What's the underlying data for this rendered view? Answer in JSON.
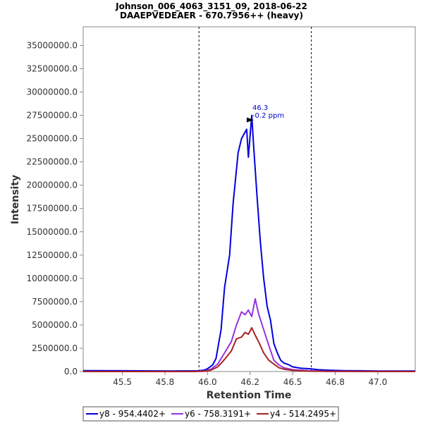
{
  "chart_data": {
    "type": "line",
    "title": "Johnson_006_4063_3151_09, 2018-06-22",
    "subtitle": "DAAEPVEDEAER - 670.7956++ (heavy)",
    "xlabel": "Retention Time",
    "ylabel": "Intensity",
    "xlim": [
      45.27,
      47.22
    ],
    "ylim": [
      0,
      37000000
    ],
    "x_ticks": [
      "45.5",
      "45.8",
      "46.0",
      "46.2",
      "46.5",
      "46.8",
      "47.0"
    ],
    "x_tick_values": [
      45.5,
      45.75,
      46.0,
      46.25,
      46.5,
      46.75,
      47.0
    ],
    "y_ticks": [
      "0.0",
      "2500000.0",
      "5000000.0",
      "7500000.0",
      "10000000.0",
      "12500000.0",
      "15000000.0",
      "17500000.0",
      "20000000.0",
      "22500000.0",
      "25000000.0",
      "27500000.0",
      "30000000.0",
      "32500000.0",
      "35000000.0"
    ],
    "y_tick_values": [
      0,
      2500000,
      5000000,
      7500000,
      10000000,
      12500000,
      15000000,
      17500000,
      20000000,
      22500000,
      25000000,
      27500000,
      30000000,
      32500000,
      35000000
    ],
    "integration_bounds": [
      45.95,
      46.61
    ],
    "annotation": {
      "line1": "46.3",
      "line2": "-0.2 ppm",
      "x": 46.28,
      "y": 27000000,
      "color": "#0000cc"
    },
    "grid": false,
    "legend_position": "bottom",
    "series": [
      {
        "name": "y8 - 954.4402+",
        "color": "#0000dd",
        "x": [
          45.27,
          45.5,
          45.8,
          45.9,
          45.95,
          45.98,
          46.0,
          46.03,
          46.05,
          46.08,
          46.1,
          46.13,
          46.15,
          46.18,
          46.2,
          46.23,
          46.24,
          46.26,
          46.27,
          46.29,
          46.31,
          46.33,
          46.35,
          46.37,
          46.39,
          46.41,
          46.43,
          46.45,
          46.48,
          46.5,
          46.55,
          46.6,
          46.65,
          46.7,
          46.8,
          46.9,
          47.0,
          47.22
        ],
        "y": [
          100000,
          80000,
          60000,
          70000,
          80000,
          150000,
          300000,
          700000,
          1400000,
          4500000,
          9000000,
          12500000,
          18000000,
          23500000,
          25000000,
          26000000,
          23000000,
          27500000,
          24500000,
          19000000,
          14000000,
          10000000,
          7000000,
          5500000,
          3000000,
          2000000,
          1200000,
          900000,
          700000,
          500000,
          350000,
          300000,
          200000,
          150000,
          100000,
          80000,
          60000,
          50000
        ]
      },
      {
        "name": "y6 - 758.3191+",
        "color": "#9933dd",
        "x": [
          45.27,
          45.9,
          45.98,
          46.02,
          46.06,
          46.1,
          46.14,
          46.17,
          46.2,
          46.22,
          46.24,
          46.26,
          46.28,
          46.3,
          46.33,
          46.36,
          46.39,
          46.42,
          46.45,
          46.5,
          46.6,
          46.7,
          47.22
        ],
        "y": [
          0,
          0,
          50000,
          250000,
          800000,
          2000000,
          3200000,
          5000000,
          6400000,
          6100000,
          6600000,
          5900000,
          7800000,
          6200000,
          4500000,
          2800000,
          1200000,
          700000,
          400000,
          200000,
          80000,
          30000,
          0
        ]
      },
      {
        "name": "y4 - 514.2495+",
        "color": "#aa2222",
        "x": [
          45.27,
          45.9,
          45.98,
          46.02,
          46.06,
          46.1,
          46.14,
          46.17,
          46.2,
          46.22,
          46.24,
          46.26,
          46.28,
          46.3,
          46.33,
          46.36,
          46.39,
          46.42,
          46.45,
          46.5,
          46.6,
          46.7,
          47.22
        ],
        "y": [
          0,
          0,
          30000,
          150000,
          500000,
          1300000,
          2200000,
          3500000,
          3700000,
          4200000,
          4000000,
          4700000,
          3900000,
          3200000,
          2000000,
          1200000,
          800000,
          400000,
          250000,
          120000,
          40000,
          15000,
          0
        ]
      }
    ]
  }
}
